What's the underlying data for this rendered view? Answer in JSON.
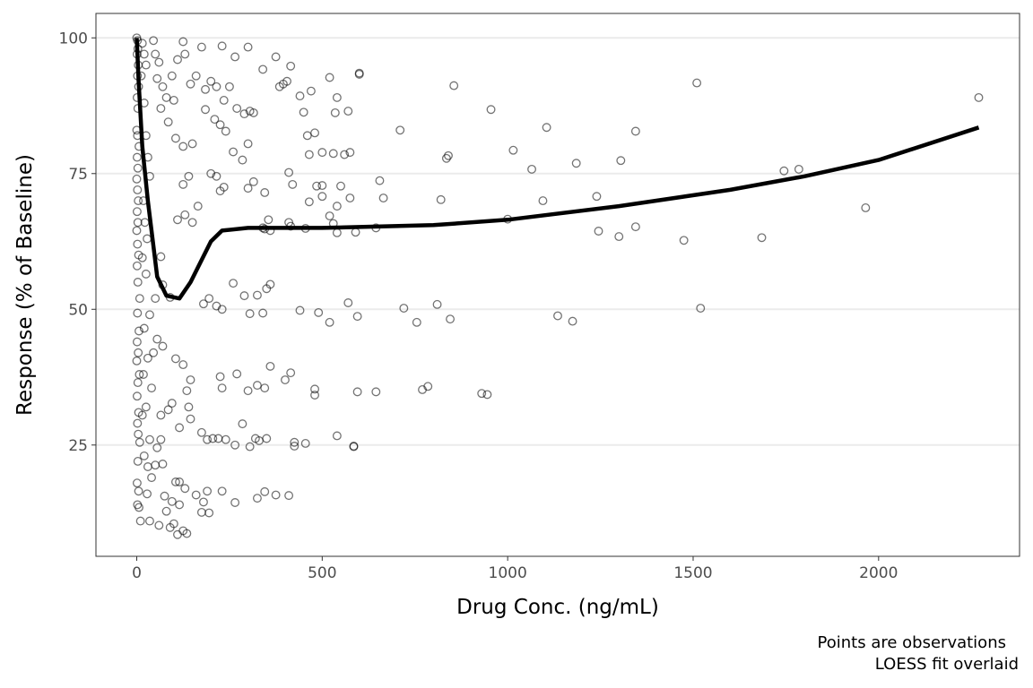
{
  "chart_data": {
    "type": "scatter",
    "xlabel": "Drug Conc. (ng/mL)",
    "ylabel": "Response (% of Baseline)",
    "xlim": [
      -110,
      2380
    ],
    "ylim": [
      4.5,
      104.5
    ],
    "x_ticks": [
      0,
      500,
      1000,
      1500,
      2000
    ],
    "y_ticks": [
      25,
      50,
      75,
      100
    ],
    "x_tick_labels": [
      "0",
      "500",
      "1000",
      "1500",
      "2000"
    ],
    "y_tick_labels": [
      "25",
      "50",
      "75",
      "100"
    ],
    "grid": "horizontal major",
    "caption": [
      "Points are observations",
      "LOESS fit overlaid"
    ],
    "series": [
      {
        "name": "observations",
        "type": "scatter",
        "points": [
          [
            2270,
            89
          ],
          [
            1510,
            91.7
          ],
          [
            855,
            91.2
          ],
          [
            955,
            86.8
          ],
          [
            1105,
            83.5
          ],
          [
            1345,
            82.8
          ],
          [
            710,
            83
          ],
          [
            1015,
            79.3
          ],
          [
            840,
            78.3
          ],
          [
            835,
            77.8
          ],
          [
            1065,
            75.8
          ],
          [
            1185,
            76.9
          ],
          [
            1305,
            77.4
          ],
          [
            1745,
            75.5
          ],
          [
            1785,
            75.8
          ],
          [
            655,
            73.7
          ],
          [
            665,
            70.5
          ],
          [
            1095,
            70
          ],
          [
            1240,
            70.8
          ],
          [
            820,
            70.2
          ],
          [
            1000,
            66.6
          ],
          [
            1345,
            65.2
          ],
          [
            1245,
            64.4
          ],
          [
            1300,
            63.4
          ],
          [
            1475,
            62.7
          ],
          [
            1685,
            63.2
          ],
          [
            1965,
            68.7
          ],
          [
            590,
            64.2
          ],
          [
            645,
            65
          ],
          [
            540,
            64.1
          ],
          [
            530,
            65.8
          ],
          [
            720,
            50.2
          ],
          [
            810,
            50.9
          ],
          [
            845,
            48.2
          ],
          [
            755,
            47.6
          ],
          [
            1135,
            48.8
          ],
          [
            1175,
            47.8
          ],
          [
            1520,
            50.2
          ],
          [
            595,
            48.7
          ],
          [
            520,
            47.6
          ],
          [
            570,
            51.2
          ],
          [
            490,
            49.4
          ],
          [
            440,
            49.8
          ],
          [
            770,
            35.2
          ],
          [
            785,
            35.8
          ],
          [
            930,
            34.5
          ],
          [
            945,
            34.3
          ],
          [
            595,
            34.8
          ],
          [
            645,
            34.8
          ],
          [
            480,
            35.3
          ],
          [
            480,
            34.2
          ],
          [
            415,
            38.3
          ],
          [
            400,
            37
          ],
          [
            540,
            26.7
          ],
          [
            585,
            24.8
          ],
          [
            585,
            24.7
          ],
          [
            455,
            25.3
          ],
          [
            425,
            25.5
          ],
          [
            425,
            24.8
          ],
          [
            410,
            15.7
          ],
          [
            375,
            15.8
          ],
          [
            345,
            16.4
          ],
          [
            325,
            15.2
          ],
          [
            600,
            93.3
          ],
          [
            600,
            93.5
          ],
          [
            570,
            86.5
          ],
          [
            535,
            86.2
          ],
          [
            540,
            89
          ],
          [
            520,
            92.7
          ],
          [
            470,
            90.2
          ],
          [
            440,
            89.3
          ],
          [
            415,
            94.8
          ],
          [
            385,
            91
          ],
          [
            395,
            91.5
          ],
          [
            405,
            92
          ],
          [
            375,
            96.5
          ],
          [
            340,
            94.2
          ],
          [
            300,
            98.3
          ],
          [
            265,
            96.5
          ],
          [
            230,
            98.5
          ],
          [
            175,
            98.3
          ],
          [
            125,
            99.3
          ],
          [
            450,
            86.3
          ],
          [
            480,
            82.5
          ],
          [
            460,
            82
          ],
          [
            560,
            78.5
          ],
          [
            575,
            78.9
          ],
          [
            500,
            78.9
          ],
          [
            530,
            78.7
          ],
          [
            465,
            78.5
          ],
          [
            410,
            75.2
          ],
          [
            420,
            73
          ],
          [
            485,
            72.7
          ],
          [
            500,
            72.8
          ],
          [
            550,
            72.7
          ],
          [
            575,
            70.5
          ],
          [
            500,
            70.8
          ],
          [
            465,
            69.8
          ],
          [
            540,
            69
          ],
          [
            520,
            67.2
          ],
          [
            410,
            66
          ],
          [
            415,
            65.3
          ],
          [
            340,
            65
          ],
          [
            355,
            66.5
          ],
          [
            345,
            64.8
          ],
          [
            360,
            64.5
          ],
          [
            455,
            64.9
          ],
          [
            0,
            100
          ],
          [
            2,
            99.5
          ],
          [
            3,
            98
          ],
          [
            1,
            97
          ],
          [
            4,
            95
          ],
          [
            2,
            93
          ],
          [
            5,
            91
          ],
          [
            1,
            89
          ],
          [
            3,
            87
          ],
          [
            0,
            83
          ],
          [
            2,
            82
          ],
          [
            6,
            80
          ],
          [
            1,
            78
          ],
          [
            3,
            76
          ],
          [
            0,
            74
          ],
          [
            2,
            72
          ],
          [
            4,
            70
          ],
          [
            1,
            68
          ],
          [
            3,
            66
          ],
          [
            0,
            64.5
          ],
          [
            2,
            62
          ],
          [
            5,
            60
          ],
          [
            1,
            58
          ],
          [
            3,
            55
          ],
          [
            8,
            52
          ],
          [
            2,
            49.3
          ],
          [
            6,
            46
          ],
          [
            1,
            44
          ],
          [
            4,
            42
          ],
          [
            0,
            40.5
          ],
          [
            7,
            38
          ],
          [
            3,
            36.5
          ],
          [
            1,
            34
          ],
          [
            5,
            31
          ],
          [
            2,
            29
          ],
          [
            4,
            27
          ],
          [
            8,
            25.5
          ],
          [
            3,
            22
          ],
          [
            1,
            18
          ],
          [
            5,
            16.5
          ],
          [
            2,
            14
          ],
          [
            6,
            13.5
          ],
          [
            10,
            11
          ],
          [
            15,
            99
          ],
          [
            20,
            97
          ],
          [
            25,
            95
          ],
          [
            12,
            93
          ],
          [
            20,
            88
          ],
          [
            25,
            82
          ],
          [
            30,
            78
          ],
          [
            35,
            74.5
          ],
          [
            18,
            70
          ],
          [
            22,
            66
          ],
          [
            28,
            63
          ],
          [
            15,
            59.5
          ],
          [
            25,
            56.5
          ],
          [
            35,
            49
          ],
          [
            20,
            46.5
          ],
          [
            30,
            41
          ],
          [
            18,
            38
          ],
          [
            40,
            35.5
          ],
          [
            25,
            32
          ],
          [
            15,
            30.5
          ],
          [
            35,
            26
          ],
          [
            20,
            23
          ],
          [
            30,
            21
          ],
          [
            40,
            19
          ],
          [
            28,
            16
          ],
          [
            35,
            11
          ],
          [
            45,
            99.5
          ],
          [
            50,
            97
          ],
          [
            60,
            95.5
          ],
          [
            55,
            92.5
          ],
          [
            70,
            91
          ],
          [
            80,
            89
          ],
          [
            65,
            87
          ],
          [
            95,
            93
          ],
          [
            100,
            88.5
          ],
          [
            110,
            96
          ],
          [
            130,
            97
          ],
          [
            145,
            91.5
          ],
          [
            160,
            93
          ],
          [
            185,
            90.5
          ],
          [
            200,
            92
          ],
          [
            215,
            91
          ],
          [
            235,
            88.5
          ],
          [
            250,
            91
          ],
          [
            270,
            87
          ],
          [
            290,
            86
          ],
          [
            305,
            86.5
          ],
          [
            315,
            86.2
          ],
          [
            85,
            84.5
          ],
          [
            105,
            81.5
          ],
          [
            125,
            80
          ],
          [
            150,
            80.5
          ],
          [
            185,
            86.8
          ],
          [
            210,
            85
          ],
          [
            225,
            84
          ],
          [
            240,
            82.8
          ],
          [
            260,
            79
          ],
          [
            285,
            77.5
          ],
          [
            300,
            80.5
          ],
          [
            140,
            74.5
          ],
          [
            125,
            73
          ],
          [
            165,
            69
          ],
          [
            200,
            75
          ],
          [
            215,
            74.5
          ],
          [
            225,
            71.8
          ],
          [
            235,
            72.5
          ],
          [
            300,
            72.3
          ],
          [
            315,
            73.5
          ],
          [
            345,
            71.5
          ],
          [
            110,
            66.5
          ],
          [
            130,
            67.4
          ],
          [
            150,
            66
          ],
          [
            65,
            59.7
          ],
          [
            70,
            54.5
          ],
          [
            50,
            52
          ],
          [
            90,
            52.2
          ],
          [
            180,
            51
          ],
          [
            195,
            52
          ],
          [
            215,
            50.6
          ],
          [
            230,
            50
          ],
          [
            260,
            54.8
          ],
          [
            290,
            52.5
          ],
          [
            305,
            49.2
          ],
          [
            325,
            52.6
          ],
          [
            340,
            49.3
          ],
          [
            350,
            53.8
          ],
          [
            360,
            54.6
          ],
          [
            55,
            44.5
          ],
          [
            45,
            42
          ],
          [
            70,
            43.2
          ],
          [
            105,
            40.9
          ],
          [
            125,
            39.8
          ],
          [
            145,
            37
          ],
          [
            225,
            37.6
          ],
          [
            230,
            35.5
          ],
          [
            270,
            38.1
          ],
          [
            300,
            35
          ],
          [
            325,
            36
          ],
          [
            345,
            35.5
          ],
          [
            360,
            39.5
          ],
          [
            135,
            35
          ],
          [
            140,
            32
          ],
          [
            65,
            30.5
          ],
          [
            85,
            31.5
          ],
          [
            95,
            32.7
          ],
          [
            115,
            28.2
          ],
          [
            145,
            29.8
          ],
          [
            175,
            27.3
          ],
          [
            190,
            26
          ],
          [
            205,
            26.2
          ],
          [
            220,
            26.2
          ],
          [
            240,
            26
          ],
          [
            265,
            25
          ],
          [
            285,
            28.9
          ],
          [
            305,
            24.7
          ],
          [
            320,
            26.2
          ],
          [
            330,
            25.8
          ],
          [
            350,
            26.2
          ],
          [
            65,
            26
          ],
          [
            55,
            24.5
          ],
          [
            50,
            21.3
          ],
          [
            70,
            21.5
          ],
          [
            105,
            18.2
          ],
          [
            115,
            18.2
          ],
          [
            130,
            17
          ],
          [
            160,
            15.8
          ],
          [
            180,
            14.5
          ],
          [
            190,
            16.5
          ],
          [
            230,
            16.5
          ],
          [
            265,
            14.4
          ],
          [
            75,
            15.6
          ],
          [
            95,
            14.6
          ],
          [
            115,
            14
          ],
          [
            80,
            12.8
          ],
          [
            100,
            10.5
          ],
          [
            110,
            8.5
          ],
          [
            125,
            9.2
          ],
          [
            135,
            8.7
          ],
          [
            175,
            12.6
          ],
          [
            195,
            12.5
          ],
          [
            90,
            9.8
          ],
          [
            60,
            10.2
          ]
        ]
      },
      {
        "name": "LOESS fit",
        "type": "line",
        "points": [
          [
            0,
            100
          ],
          [
            5,
            92
          ],
          [
            15,
            80
          ],
          [
            30,
            70
          ],
          [
            55,
            56
          ],
          [
            80,
            52.5
          ],
          [
            115,
            52
          ],
          [
            145,
            55
          ],
          [
            200,
            62.5
          ],
          [
            230,
            64.5
          ],
          [
            300,
            65
          ],
          [
            500,
            65
          ],
          [
            800,
            65.5
          ],
          [
            1000,
            66.5
          ],
          [
            1300,
            69
          ],
          [
            1600,
            72
          ],
          [
            1800,
            74.5
          ],
          [
            2000,
            77.5
          ],
          [
            2270,
            83.5
          ]
        ]
      }
    ]
  }
}
